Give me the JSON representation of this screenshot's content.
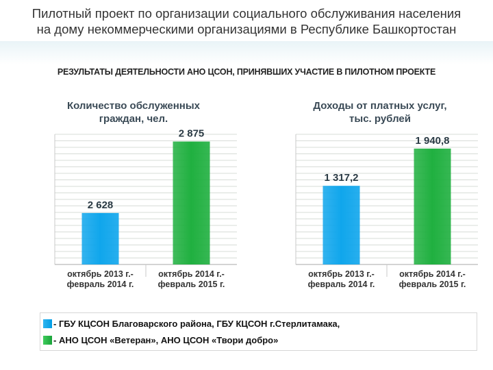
{
  "header": {
    "title_line1": "Пилотный проект по организации социального обслуживания населения",
    "title_line2": "на дому некоммерческими организациями в Республике Башкортостан",
    "subtitle": "РЕЗУЛЬТАТЫ ДЕЯТЕЛЬНОСТИ АНО ЦСОН, ПРИНЯВШИХ УЧАСТИЕ В ПИЛОТНОМ ПРОЕКТЕ"
  },
  "colors": {
    "series_2013": "#10a6ec",
    "series_2014": "#20b040",
    "grid": "#d7dcd7",
    "axis_text": "#333333"
  },
  "chart_data": [
    {
      "type": "bar",
      "title_line1": "Количество обслуженных",
      "title_line2": "граждан, чел.",
      "categories": [
        [
          "октябрь 2013 г.-",
          "февраль 2014 г."
        ],
        [
          "октябрь 2014 г.-",
          "февраль 2015 г."
        ]
      ],
      "values": [
        2628,
        2875
      ],
      "value_labels": [
        "2 628",
        "2 875"
      ],
      "ylim": [
        2450,
        2900
      ],
      "grid": true
    },
    {
      "type": "bar",
      "title_line1": "Доходы от платных услуг,",
      "title_line2": "тыс. рублей",
      "categories": [
        [
          "октябрь 2013 г.-",
          "февраль 2014 г."
        ],
        [
          "октябрь 2014 г.-",
          "февраль 2015 г."
        ]
      ],
      "values": [
        1317.2,
        1940.8
      ],
      "value_labels": [
        "1 317,2",
        "1 940,8"
      ],
      "ylim": [
        0,
        2180
      ],
      "grid": true
    }
  ],
  "legend": {
    "item1": "- ГБУ КЦСОН Благоварского района, ГБУ КЦСОН г.Стерлитамака,",
    "item2": "- АНО ЦСОН «Ветеран», АНО ЦСОН «Твори добро»"
  }
}
